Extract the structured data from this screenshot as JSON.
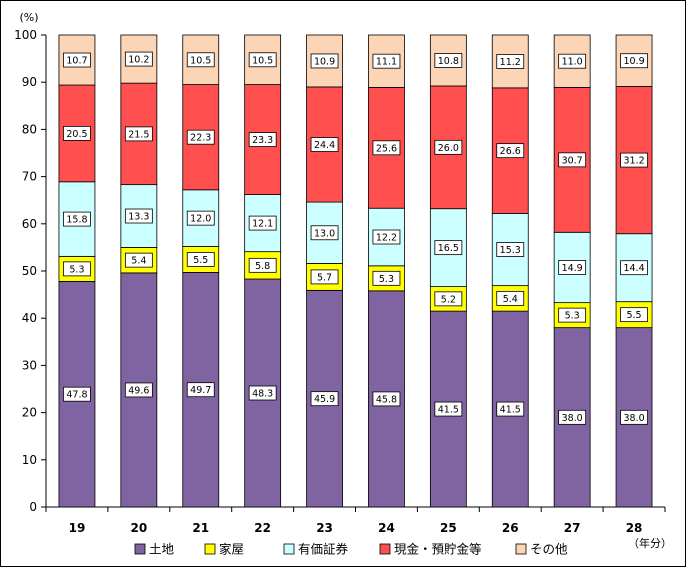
{
  "chart_data": {
    "type": "bar",
    "stacked": true,
    "y_unit_label": "(%)",
    "x_unit_label": "（年分）",
    "categories": [
      "19",
      "20",
      "21",
      "22",
      "23",
      "24",
      "25",
      "26",
      "27",
      "28"
    ],
    "ylim": [
      0,
      100
    ],
    "y_ticks": [
      "0",
      "10",
      "20",
      "30",
      "40",
      "50",
      "60",
      "70",
      "80",
      "90",
      "100"
    ],
    "grid": false,
    "legend_position": "bottom",
    "series": [
      {
        "name": "土地",
        "color": "#8064a2",
        "values": [
          "47.8",
          "49.6",
          "49.7",
          "48.3",
          "45.9",
          "45.8",
          "41.5",
          "41.5",
          "38.0",
          "38.0"
        ]
      },
      {
        "name": "家屋",
        "color": "#ffff00",
        "values": [
          "5.3",
          "5.4",
          "5.5",
          "5.8",
          "5.7",
          "5.3",
          "5.2",
          "5.4",
          "5.3",
          "5.5"
        ]
      },
      {
        "name": "有価証券",
        "color": "#ccffff",
        "values": [
          "15.8",
          "13.3",
          "12.0",
          "12.1",
          "13.0",
          "12.2",
          "16.5",
          "15.3",
          "14.9",
          "14.4"
        ]
      },
      {
        "name": "現金・預貯金等",
        "color": "#ff4f4f",
        "values": [
          "20.5",
          "21.5",
          "22.3",
          "23.3",
          "24.4",
          "25.6",
          "26.0",
          "26.6",
          "30.7",
          "31.2"
        ]
      },
      {
        "name": "その他",
        "color": "#fbd5b5",
        "values": [
          "10.7",
          "10.2",
          "10.5",
          "10.5",
          "10.9",
          "11.1",
          "10.8",
          "11.2",
          "11.0",
          "10.9"
        ]
      }
    ]
  }
}
